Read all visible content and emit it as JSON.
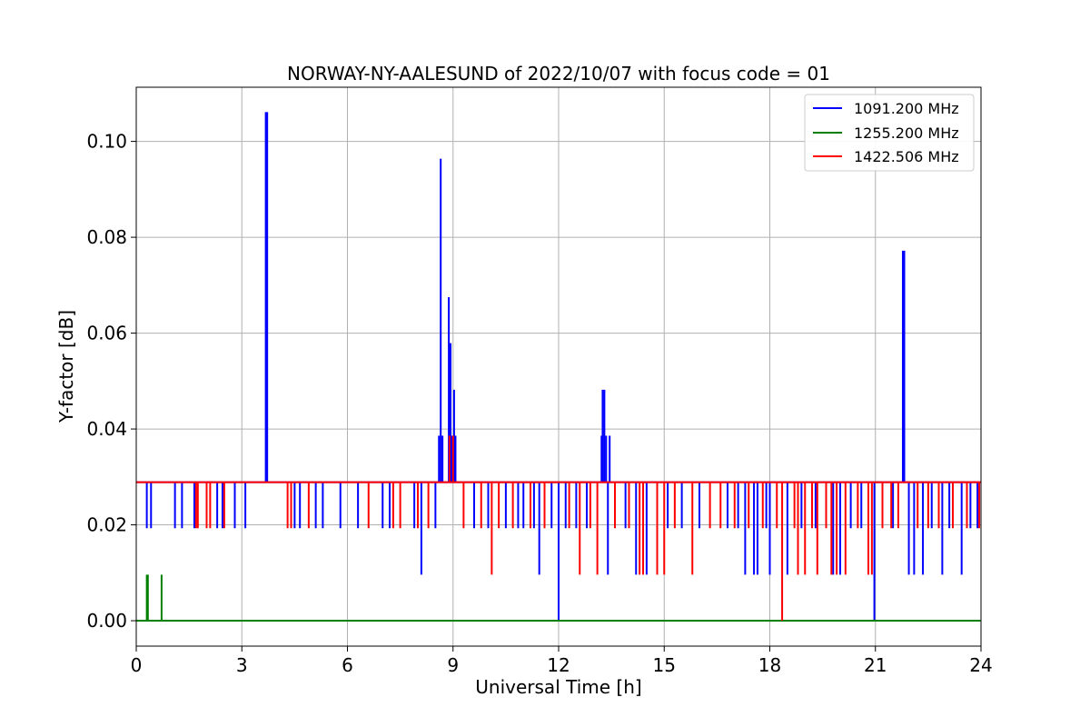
{
  "chart_data": {
    "type": "line",
    "title": "NORWAY-NY-AALESUND of 2022/10/07 with focus code = 01",
    "xlabel": "Universal Time [h]",
    "ylabel": "Y-factor [dB]",
    "xlim": [
      0,
      24
    ],
    "ylim": [
      -0.0053,
      0.1113
    ],
    "xticks": [
      0,
      3,
      6,
      9,
      12,
      15,
      18,
      21,
      24
    ],
    "xtick_labels": [
      "0",
      "3",
      "6",
      "9",
      "12",
      "15",
      "18",
      "21",
      "24"
    ],
    "yticks": [
      0.0,
      0.02,
      0.04,
      0.06,
      0.08,
      0.1
    ],
    "ytick_labels": [
      "0.00",
      "0.02",
      "0.04",
      "0.06",
      "0.08",
      "0.10"
    ],
    "grid": true,
    "legend_position": "top-right",
    "series": [
      {
        "name": "1091.200 MHz",
        "color": "#0000ff",
        "baseline": 0.0289,
        "spikes": [
          {
            "x": 0.3,
            "y": 0.0193
          },
          {
            "x": 0.42,
            "y": 0.0193
          },
          {
            "x": 1.1,
            "y": 0.0193
          },
          {
            "x": 1.3,
            "y": 0.0193
          },
          {
            "x": 1.65,
            "y": 0.0193
          },
          {
            "x": 2.3,
            "y": 0.0193
          },
          {
            "x": 2.45,
            "y": 0.0193
          },
          {
            "x": 2.8,
            "y": 0.0193
          },
          {
            "x": 3.1,
            "y": 0.0193
          },
          {
            "x": 3.68,
            "y": 0.1061
          },
          {
            "x": 3.72,
            "y": 0.1061
          },
          {
            "x": 4.5,
            "y": 0.0193
          },
          {
            "x": 4.65,
            "y": 0.0193
          },
          {
            "x": 5.1,
            "y": 0.0193
          },
          {
            "x": 5.3,
            "y": 0.0193
          },
          {
            "x": 5.8,
            "y": 0.0193
          },
          {
            "x": 6.3,
            "y": 0.0193
          },
          {
            "x": 7.0,
            "y": 0.0193
          },
          {
            "x": 7.2,
            "y": 0.0193
          },
          {
            "x": 7.9,
            "y": 0.0193
          },
          {
            "x": 8.1,
            "y": 0.0096
          },
          {
            "x": 8.5,
            "y": 0.0193
          },
          {
            "x": 8.6,
            "y": 0.0386
          },
          {
            "x": 8.65,
            "y": 0.0964
          },
          {
            "x": 8.7,
            "y": 0.0386
          },
          {
            "x": 8.88,
            "y": 0.0675
          },
          {
            "x": 8.93,
            "y": 0.0579
          },
          {
            "x": 8.97,
            "y": 0.0386
          },
          {
            "x": 9.03,
            "y": 0.0482
          },
          {
            "x": 9.07,
            "y": 0.0386
          },
          {
            "x": 9.6,
            "y": 0.0193
          },
          {
            "x": 10.0,
            "y": 0.0193
          },
          {
            "x": 10.5,
            "y": 0.0193
          },
          {
            "x": 10.85,
            "y": 0.0193
          },
          {
            "x": 11.0,
            "y": 0.0193
          },
          {
            "x": 11.3,
            "y": 0.0193
          },
          {
            "x": 11.45,
            "y": 0.0096
          },
          {
            "x": 11.8,
            "y": 0.0193
          },
          {
            "x": 12.0,
            "y": 0.0
          },
          {
            "x": 12.2,
            "y": 0.0193
          },
          {
            "x": 12.5,
            "y": 0.0193
          },
          {
            "x": 12.8,
            "y": 0.0193
          },
          {
            "x": 13.25,
            "y": 0.0482
          },
          {
            "x": 13.3,
            "y": 0.0482
          },
          {
            "x": 13.22,
            "y": 0.0386
          },
          {
            "x": 13.35,
            "y": 0.0386
          },
          {
            "x": 13.4,
            "y": 0.0096
          },
          {
            "x": 13.45,
            "y": 0.0386
          },
          {
            "x": 13.9,
            "y": 0.0193
          },
          {
            "x": 14.2,
            "y": 0.0096
          },
          {
            "x": 14.5,
            "y": 0.0096
          },
          {
            "x": 15.1,
            "y": 0.0193
          },
          {
            "x": 15.5,
            "y": 0.0193
          },
          {
            "x": 16.0,
            "y": 0.0193
          },
          {
            "x": 16.8,
            "y": 0.0193
          },
          {
            "x": 17.1,
            "y": 0.0193
          },
          {
            "x": 17.3,
            "y": 0.0096
          },
          {
            "x": 17.55,
            "y": 0.0096
          },
          {
            "x": 17.65,
            "y": 0.0096
          },
          {
            "x": 17.9,
            "y": 0.0193
          },
          {
            "x": 18.0,
            "y": 0.0096
          },
          {
            "x": 18.5,
            "y": 0.0096
          },
          {
            "x": 18.9,
            "y": 0.0193
          },
          {
            "x": 19.3,
            "y": 0.0193
          },
          {
            "x": 19.8,
            "y": 0.0096
          },
          {
            "x": 20.0,
            "y": 0.0096
          },
          {
            "x": 20.3,
            "y": 0.0193
          },
          {
            "x": 20.6,
            "y": 0.0193
          },
          {
            "x": 20.97,
            "y": 0.0
          },
          {
            "x": 21.5,
            "y": 0.0193
          },
          {
            "x": 21.78,
            "y": 0.0772
          },
          {
            "x": 21.82,
            "y": 0.0772
          },
          {
            "x": 21.95,
            "y": 0.0096
          },
          {
            "x": 22.1,
            "y": 0.0096
          },
          {
            "x": 22.35,
            "y": 0.0096
          },
          {
            "x": 22.6,
            "y": 0.0193
          },
          {
            "x": 22.9,
            "y": 0.0096
          },
          {
            "x": 23.1,
            "y": 0.0193
          },
          {
            "x": 23.45,
            "y": 0.0096
          },
          {
            "x": 23.7,
            "y": 0.0193
          },
          {
            "x": 23.9,
            "y": 0.0193
          }
        ]
      },
      {
        "name": "1255.200 MHz",
        "color": "#008000",
        "baseline": 0.0,
        "spikes": [
          {
            "x": 0.3,
            "y": 0.0096
          },
          {
            "x": 0.33,
            "y": 0.0096
          },
          {
            "x": 0.72,
            "y": 0.0096
          }
        ]
      },
      {
        "name": "1422.506 MHz",
        "color": "#ff0000",
        "baseline": 0.0289,
        "spikes": [
          {
            "x": 1.7,
            "y": 0.0193
          },
          {
            "x": 1.75,
            "y": 0.0193
          },
          {
            "x": 2.0,
            "y": 0.0193
          },
          {
            "x": 2.1,
            "y": 0.0193
          },
          {
            "x": 2.5,
            "y": 0.0193
          },
          {
            "x": 4.3,
            "y": 0.0193
          },
          {
            "x": 4.4,
            "y": 0.0193
          },
          {
            "x": 4.9,
            "y": 0.0193
          },
          {
            "x": 6.6,
            "y": 0.0193
          },
          {
            "x": 7.3,
            "y": 0.0193
          },
          {
            "x": 7.5,
            "y": 0.0193
          },
          {
            "x": 8.0,
            "y": 0.0193
          },
          {
            "x": 8.3,
            "y": 0.0193
          },
          {
            "x": 8.9,
            "y": 0.0386
          },
          {
            "x": 9.0,
            "y": 0.0386
          },
          {
            "x": 9.3,
            "y": 0.0193
          },
          {
            "x": 9.8,
            "y": 0.0193
          },
          {
            "x": 10.1,
            "y": 0.0096
          },
          {
            "x": 10.3,
            "y": 0.0193
          },
          {
            "x": 10.7,
            "y": 0.0193
          },
          {
            "x": 11.2,
            "y": 0.0193
          },
          {
            "x": 11.6,
            "y": 0.0193
          },
          {
            "x": 12.3,
            "y": 0.0193
          },
          {
            "x": 12.6,
            "y": 0.0096
          },
          {
            "x": 12.9,
            "y": 0.0193
          },
          {
            "x": 13.1,
            "y": 0.0096
          },
          {
            "x": 13.6,
            "y": 0.0193
          },
          {
            "x": 14.0,
            "y": 0.0193
          },
          {
            "x": 14.3,
            "y": 0.0096
          },
          {
            "x": 14.4,
            "y": 0.0096
          },
          {
            "x": 14.8,
            "y": 0.0096
          },
          {
            "x": 15.0,
            "y": 0.0096
          },
          {
            "x": 15.3,
            "y": 0.0193
          },
          {
            "x": 15.8,
            "y": 0.0096
          },
          {
            "x": 16.3,
            "y": 0.0193
          },
          {
            "x": 16.6,
            "y": 0.0193
          },
          {
            "x": 17.0,
            "y": 0.0193
          },
          {
            "x": 17.4,
            "y": 0.0193
          },
          {
            "x": 17.8,
            "y": 0.0193
          },
          {
            "x": 18.2,
            "y": 0.0193
          },
          {
            "x": 18.35,
            "y": 0.0
          },
          {
            "x": 18.7,
            "y": 0.0193
          },
          {
            "x": 18.8,
            "y": 0.0096
          },
          {
            "x": 19.0,
            "y": 0.0096
          },
          {
            "x": 19.2,
            "y": 0.0193
          },
          {
            "x": 19.35,
            "y": 0.0096
          },
          {
            "x": 19.6,
            "y": 0.0193
          },
          {
            "x": 19.75,
            "y": 0.0096
          },
          {
            "x": 19.9,
            "y": 0.0096
          },
          {
            "x": 20.15,
            "y": 0.0096
          },
          {
            "x": 20.5,
            "y": 0.0193
          },
          {
            "x": 20.8,
            "y": 0.0096
          },
          {
            "x": 20.9,
            "y": 0.0096
          },
          {
            "x": 21.2,
            "y": 0.0193
          },
          {
            "x": 21.45,
            "y": 0.0193
          },
          {
            "x": 21.65,
            "y": 0.0193
          },
          {
            "x": 22.2,
            "y": 0.0193
          },
          {
            "x": 22.5,
            "y": 0.0193
          },
          {
            "x": 22.8,
            "y": 0.0193
          },
          {
            "x": 23.2,
            "y": 0.0193
          },
          {
            "x": 23.6,
            "y": 0.0193
          },
          {
            "x": 23.95,
            "y": 0.0193
          }
        ]
      }
    ]
  }
}
